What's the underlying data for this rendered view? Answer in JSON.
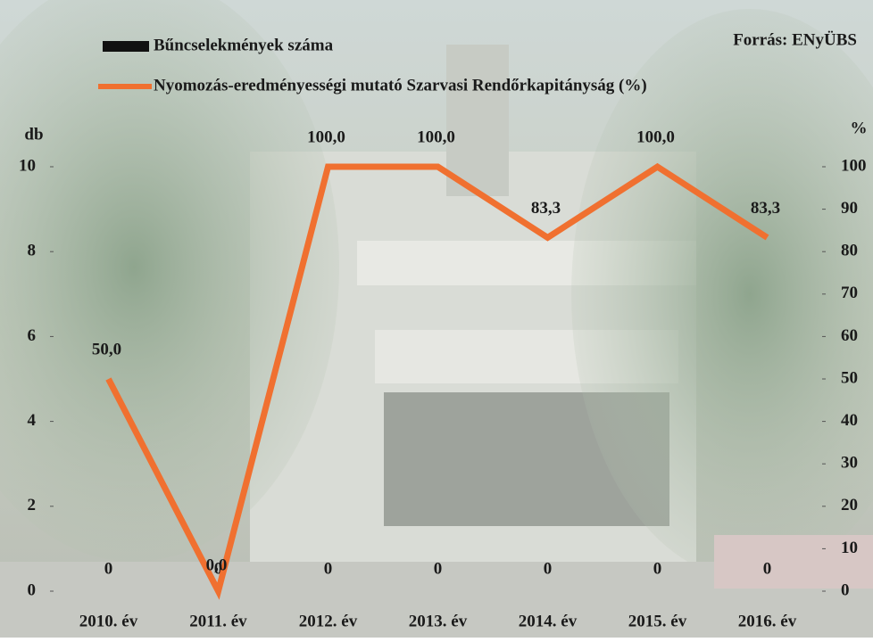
{
  "chart_data": {
    "type": "bar_line",
    "source": "Forrás: ENyÜBS",
    "y_label": "db",
    "y2_label": "%",
    "categories": [
      "2010. év",
      "2011. év",
      "2012. év",
      "2013. év",
      "2014. év",
      "2015. év",
      "2016. év"
    ],
    "series": [
      {
        "name": "Bűncselekmények száma",
        "type": "bar",
        "color": "#111111",
        "values": [
          0,
          0,
          0,
          0,
          0,
          0,
          0
        ]
      },
      {
        "name": "Nyomozás-eredményességi mutató Szarvasi Rendőrkapitányság (%)",
        "type": "line",
        "axis": "y2",
        "color": "#f07030",
        "values": [
          50,
          0,
          100,
          100,
          83.3,
          100,
          83.3
        ],
        "value_labels": [
          "50,0",
          "0,0",
          "100,0",
          "100,0",
          "83,3",
          "100,0",
          "83,3"
        ]
      }
    ],
    "ylim": [
      0,
      10
    ],
    "yticks": [
      0,
      2,
      4,
      6,
      8,
      10
    ],
    "y2lim": [
      0,
      100
    ],
    "y2ticks": [
      0,
      10,
      20,
      30,
      40,
      50,
      60,
      70,
      80,
      90,
      100
    ]
  }
}
